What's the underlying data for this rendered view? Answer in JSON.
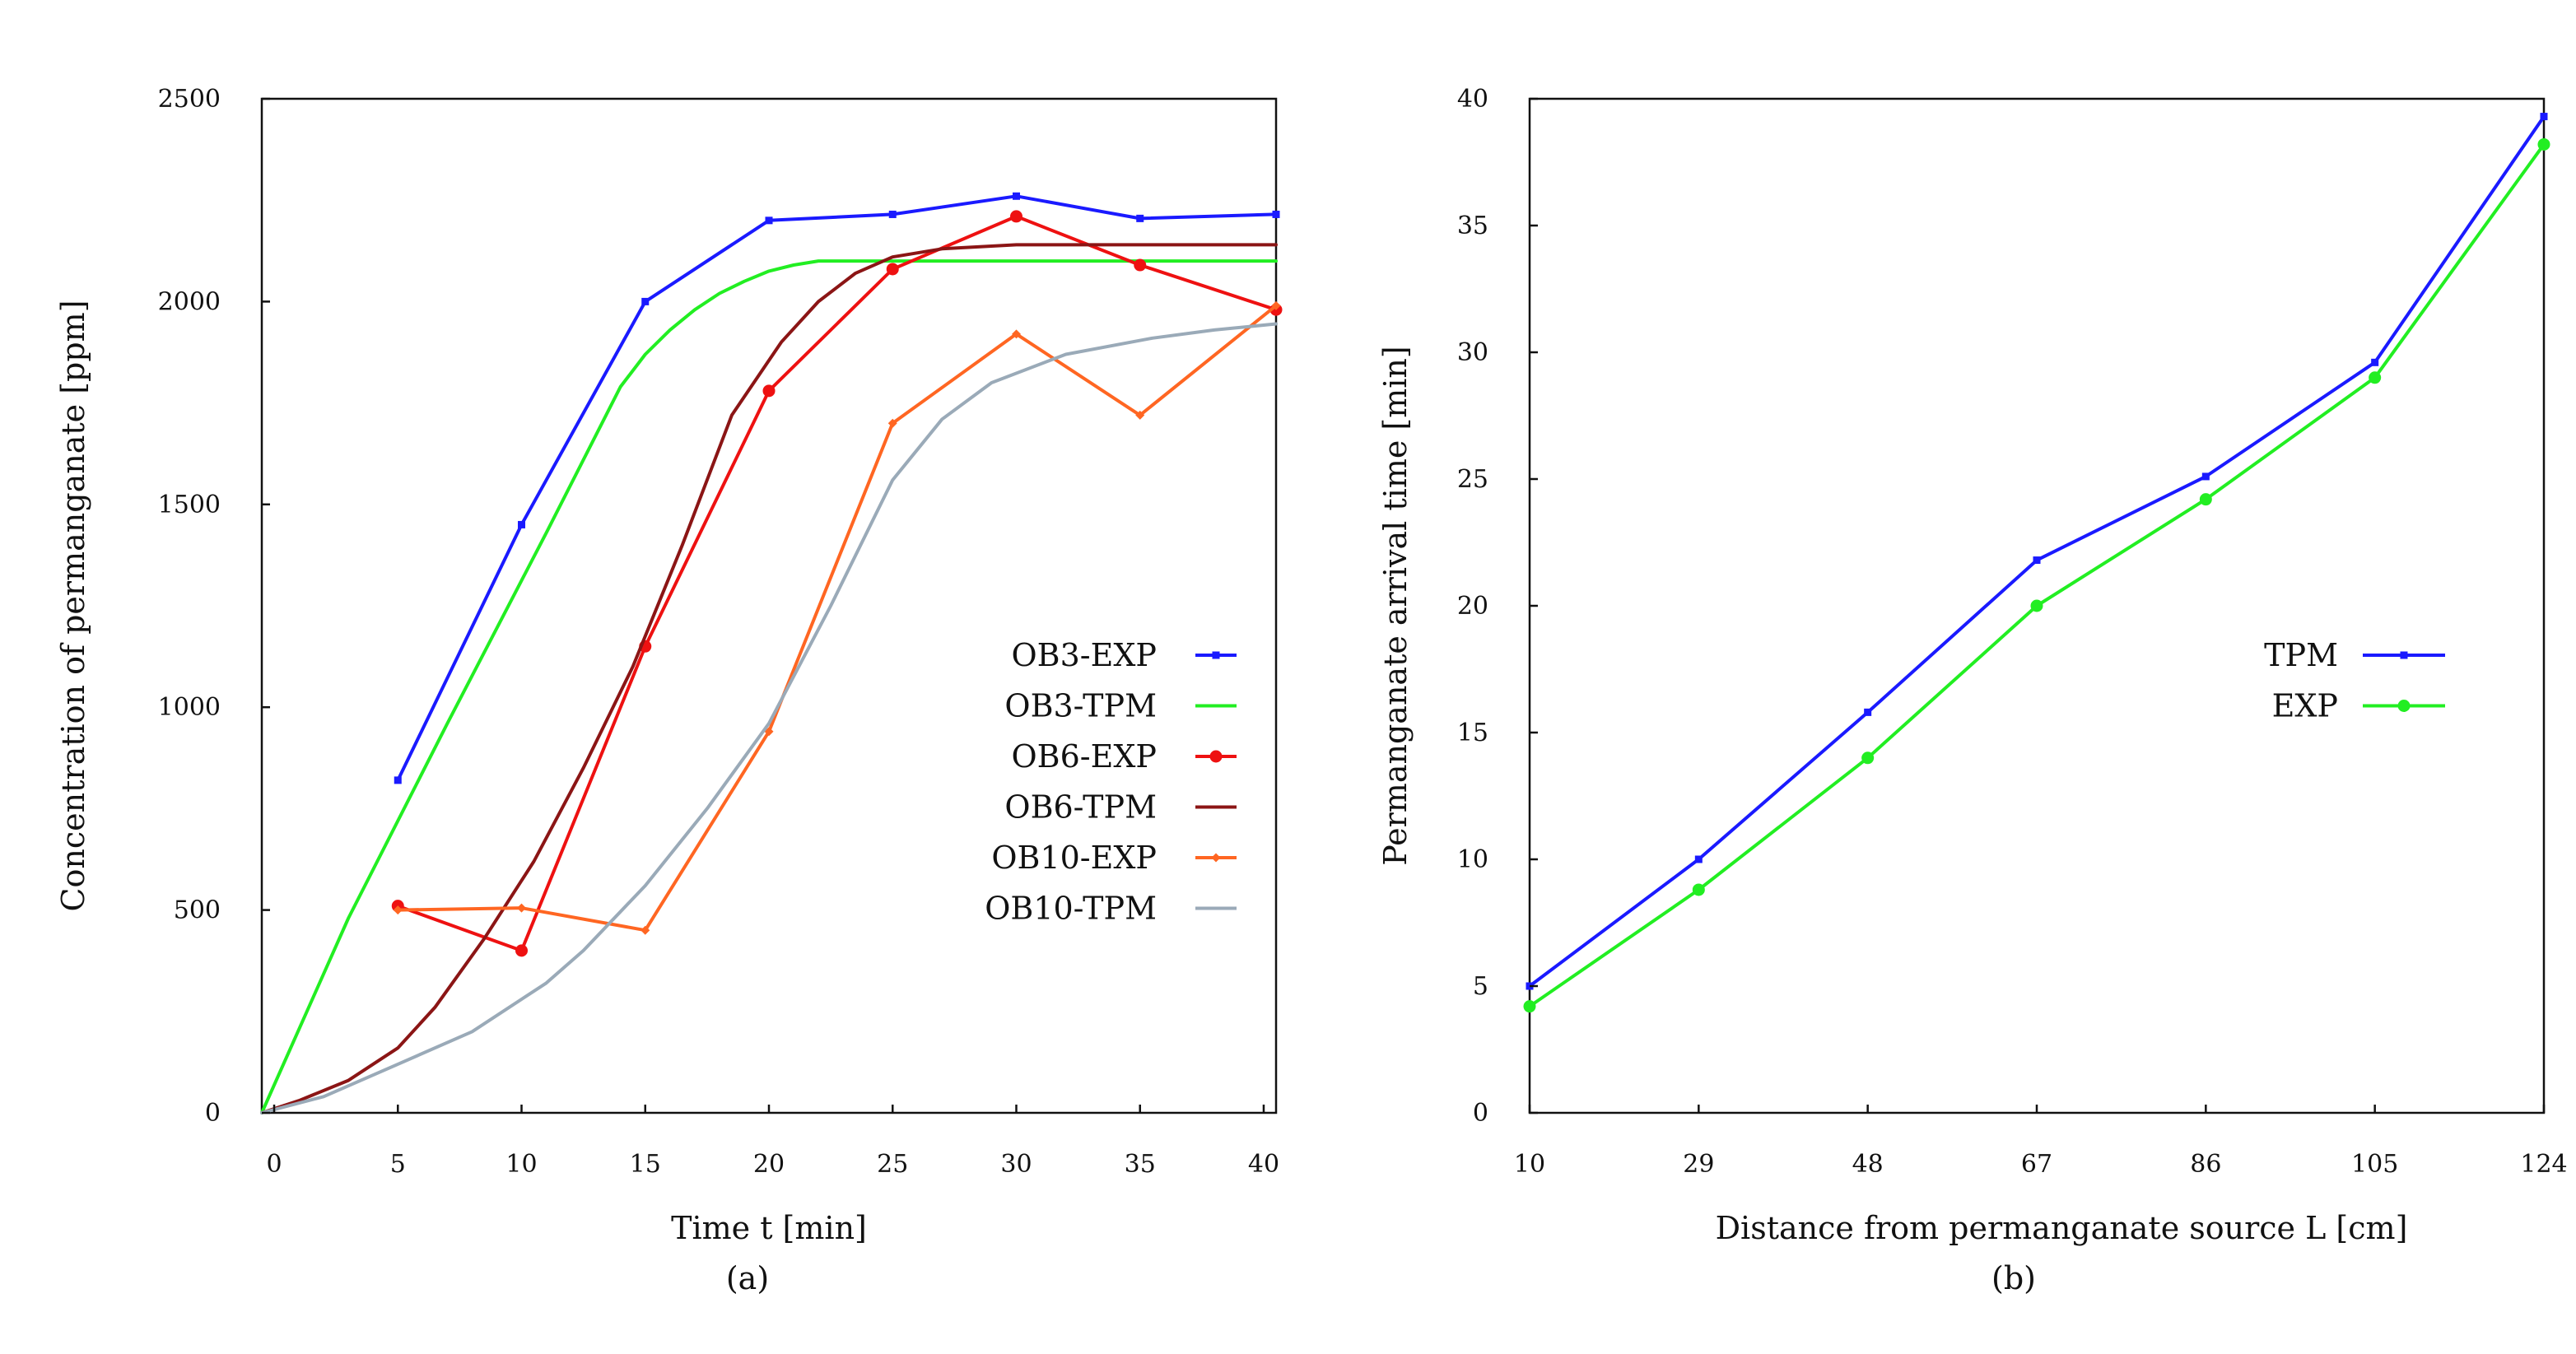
{
  "figure": {
    "caption_a": "(a)",
    "caption_b": "(b)"
  },
  "chart_data": [
    {
      "type": "line",
      "panel": "a",
      "xlabel": "Time t [min]",
      "ylabel": "Concentration of permanganate [ppm]",
      "xlim": [
        -0.5,
        40.5
      ],
      "ylim": [
        0,
        2500
      ],
      "grid": false,
      "legend_position": "center-right",
      "xticks": [
        0,
        5,
        10,
        15,
        20,
        25,
        30,
        35,
        40
      ],
      "xtick_labels": [
        "0",
        "5",
        "10",
        "15",
        "20",
        "25",
        "30",
        "35",
        "40"
      ],
      "yticks": [
        0,
        500,
        1000,
        1500,
        2000,
        2500
      ],
      "ytick_labels": [
        "0",
        "500",
        "1000",
        "1500",
        "2000",
        "2500"
      ],
      "series": [
        {
          "name": "OB3-EXP",
          "color": "#1a1aff",
          "marker": "square",
          "x": [
            5,
            10,
            15,
            20,
            25,
            30,
            35,
            40.5
          ],
          "y": [
            820,
            1450,
            2000,
            2200,
            2215,
            2260,
            2205,
            2215
          ]
        },
        {
          "name": "OB3-TPM",
          "color": "#22ee22",
          "marker": "none",
          "x": [
            -0.5,
            3,
            7,
            11,
            14,
            15,
            16,
            17,
            18,
            19,
            20,
            21,
            22,
            23,
            25,
            30,
            35,
            40.5
          ],
          "y": [
            0,
            480,
            960,
            1430,
            1790,
            1870,
            1930,
            1980,
            2020,
            2050,
            2075,
            2090,
            2100,
            2100,
            2100,
            2100,
            2100,
            2100
          ]
        },
        {
          "name": "OB6-EXP",
          "color": "#ee1111",
          "marker": "circle",
          "x": [
            5,
            10,
            15,
            20,
            25,
            30,
            35,
            40.5
          ],
          "y": [
            510,
            400,
            1150,
            1780,
            2080,
            2210,
            2090,
            1980
          ]
        },
        {
          "name": "OB6-TPM",
          "color": "#8b1515",
          "marker": "none",
          "x": [
            -0.5,
            1,
            3,
            5,
            6.5,
            8.5,
            10.5,
            12.5,
            14.5,
            16.5,
            18.5,
            20.5,
            22,
            23.5,
            25,
            27,
            30,
            35,
            40.5
          ],
          "y": [
            0,
            30,
            80,
            160,
            260,
            430,
            620,
            850,
            1100,
            1400,
            1720,
            1900,
            2000,
            2070,
            2110,
            2130,
            2140,
            2140,
            2140
          ]
        },
        {
          "name": "OB10-EXP",
          "color": "#ff6622",
          "marker": "diamond",
          "x": [
            5,
            10,
            15,
            20,
            25,
            30,
            35,
            40.5
          ],
          "y": [
            500,
            505,
            450,
            940,
            1700,
            1920,
            1720,
            1990
          ]
        },
        {
          "name": "OB10-TPM",
          "color": "#9aaab8",
          "marker": "none",
          "x": [
            -0.5,
            2,
            5,
            8,
            11,
            12.5,
            15,
            17.5,
            20,
            22.5,
            25,
            27,
            29,
            32,
            35.5,
            38,
            40.5
          ],
          "y": [
            0,
            40,
            120,
            200,
            320,
            400,
            560,
            750,
            960,
            1250,
            1560,
            1710,
            1800,
            1870,
            1910,
            1930,
            1945
          ]
        }
      ]
    },
    {
      "type": "line",
      "panel": "b",
      "xlabel": "Distance from permanganate source L [cm]",
      "ylabel": "Permanganate arrival time [min]",
      "xlim": [
        10,
        124
      ],
      "ylim": [
        0,
        40
      ],
      "grid": false,
      "legend_position": "center-right",
      "xticks": [
        10,
        29,
        48,
        67,
        86,
        105,
        124
      ],
      "xtick_labels": [
        "10",
        "29",
        "48",
        "67",
        "86",
        "105",
        "124"
      ],
      "yticks": [
        0,
        5,
        10,
        15,
        20,
        25,
        30,
        35,
        40
      ],
      "ytick_labels": [
        "0",
        "5",
        "10",
        "15",
        "20",
        "25",
        "30",
        "35",
        "40"
      ],
      "series": [
        {
          "name": "TPM",
          "color": "#1a1aff",
          "marker": "square",
          "x": [
            10,
            29,
            48,
            67,
            86,
            105,
            124
          ],
          "y": [
            5,
            10,
            15.8,
            21.8,
            25.1,
            29.6,
            39.3
          ]
        },
        {
          "name": "EXP",
          "color": "#22ee22",
          "marker": "circle",
          "x": [
            10,
            29,
            48,
            67,
            86,
            105,
            124
          ],
          "y": [
            4.2,
            8.8,
            14,
            20,
            24.2,
            29,
            38.2
          ]
        }
      ]
    }
  ]
}
